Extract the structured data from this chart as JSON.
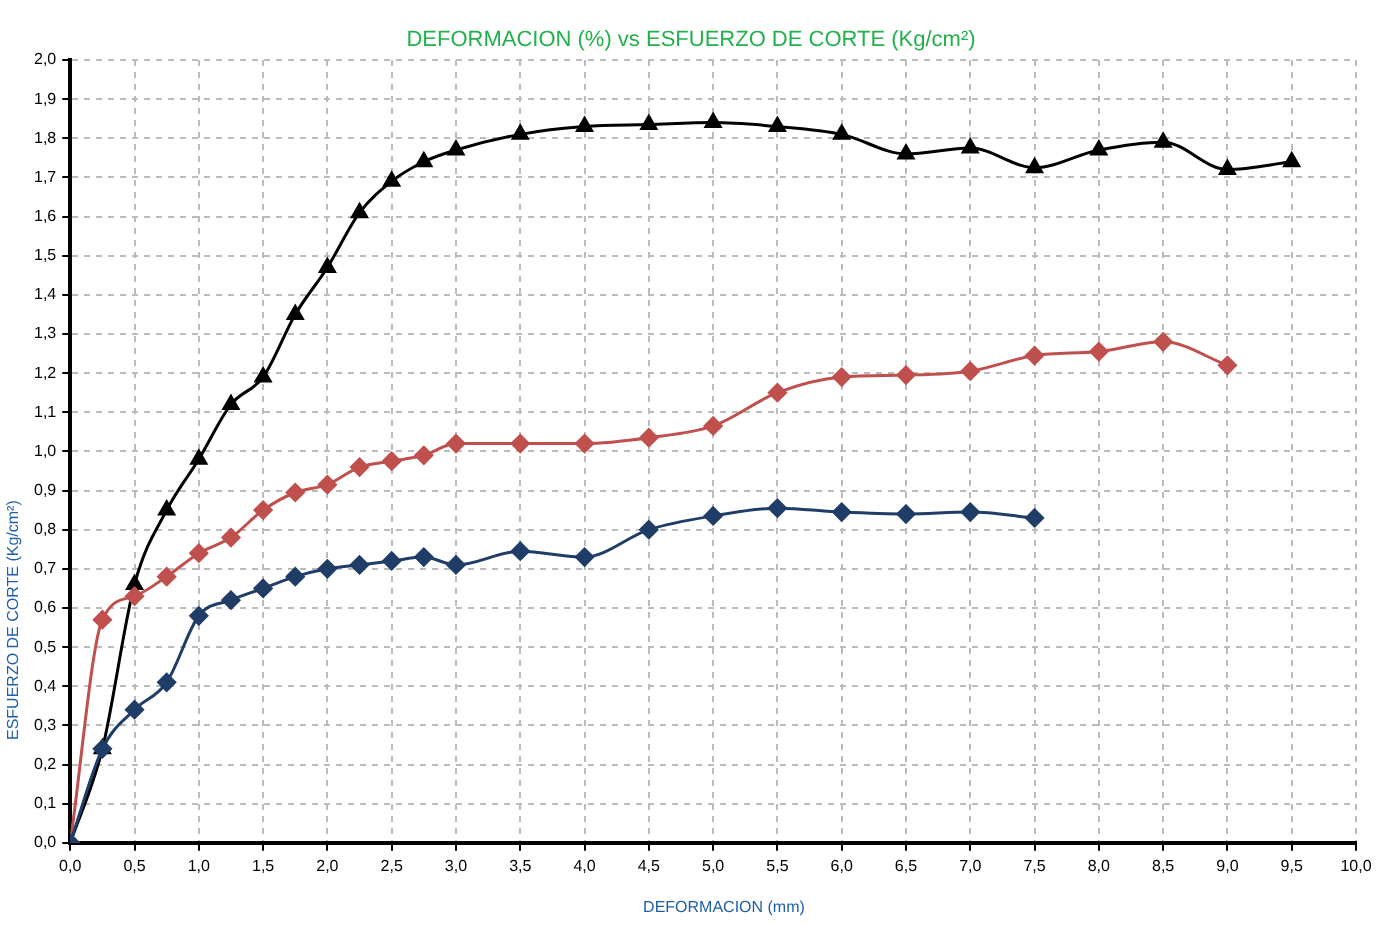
{
  "chart_data": {
    "type": "line",
    "title": "DEFORMACION (%) vs ESFUERZO DE CORTE (Kg/cm²)",
    "xlabel": "DEFORMACION (mm)",
    "ylabel": "ESFUERZO DE CORTE (Kg/cm²)",
    "xlim": [
      0,
      10
    ],
    "ylim": [
      0,
      2
    ],
    "xticks": [
      {
        "value": 0,
        "label": "0,0"
      },
      {
        "value": 0.5,
        "label": "0,5"
      },
      {
        "value": 1,
        "label": "1,0"
      },
      {
        "value": 1.5,
        "label": "1,5"
      },
      {
        "value": 2,
        "label": "2,0"
      },
      {
        "value": 2.5,
        "label": "2,5"
      },
      {
        "value": 3,
        "label": "3,0"
      },
      {
        "value": 3.5,
        "label": "3,5"
      },
      {
        "value": 4,
        "label": "4,0"
      },
      {
        "value": 4.5,
        "label": "4,5"
      },
      {
        "value": 5,
        "label": "5,0"
      },
      {
        "value": 5.5,
        "label": "5,5"
      },
      {
        "value": 6,
        "label": "6,0"
      },
      {
        "value": 6.5,
        "label": "6,5"
      },
      {
        "value": 7,
        "label": "7,0"
      },
      {
        "value": 7.5,
        "label": "7,5"
      },
      {
        "value": 8,
        "label": "8,0"
      },
      {
        "value": 8.5,
        "label": "8,5"
      },
      {
        "value": 9,
        "label": "9,0"
      },
      {
        "value": 9.5,
        "label": "9,5"
      },
      {
        "value": 10,
        "label": "10,0"
      }
    ],
    "yticks": [
      {
        "value": 0,
        "label": "0,0"
      },
      {
        "value": 0.1,
        "label": "0,1"
      },
      {
        "value": 0.2,
        "label": "0,2"
      },
      {
        "value": 0.3,
        "label": "0,3"
      },
      {
        "value": 0.4,
        "label": "0,4"
      },
      {
        "value": 0.5,
        "label": "0,5"
      },
      {
        "value": 0.6,
        "label": "0,6"
      },
      {
        "value": 0.7,
        "label": "0,7"
      },
      {
        "value": 0.8,
        "label": "0,8"
      },
      {
        "value": 0.9,
        "label": "0,9"
      },
      {
        "value": 1,
        "label": "1,0"
      },
      {
        "value": 1.1,
        "label": "1,1"
      },
      {
        "value": 1.2,
        "label": "1,2"
      },
      {
        "value": 1.3,
        "label": "1,3"
      },
      {
        "value": 1.4,
        "label": "1,4"
      },
      {
        "value": 1.5,
        "label": "1,5"
      },
      {
        "value": 1.6,
        "label": "1,6"
      },
      {
        "value": 1.7,
        "label": "1,7"
      },
      {
        "value": 1.8,
        "label": "1,8"
      },
      {
        "value": 1.9,
        "label": "1,9"
      },
      {
        "value": 2,
        "label": "2,0"
      }
    ],
    "grid": true,
    "legend": false,
    "line_style": "solid",
    "series": [
      {
        "color": "#000000",
        "marker": "triangle",
        "x": [
          0,
          0.25,
          0.5,
          0.75,
          1,
          1.25,
          1.5,
          1.75,
          2,
          2.25,
          2.5,
          2.75,
          3,
          3.5,
          4,
          4.5,
          5,
          5.5,
          6,
          6.5,
          7,
          7.5,
          8,
          8.5,
          9,
          9.5
        ],
        "values": [
          0,
          0.24,
          0.66,
          0.85,
          0.98,
          1.12,
          1.19,
          1.35,
          1.47,
          1.61,
          1.69,
          1.74,
          1.77,
          1.81,
          1.83,
          1.835,
          1.84,
          1.83,
          1.81,
          1.76,
          1.775,
          1.725,
          1.77,
          1.79,
          1.72,
          1.74
        ]
      },
      {
        "color": "#c0504d",
        "marker": "diamond",
        "x": [
          0,
          0.25,
          0.5,
          0.75,
          1,
          1.25,
          1.5,
          1.75,
          2,
          2.25,
          2.5,
          2.75,
          3,
          3.5,
          4,
          4.5,
          5,
          5.5,
          6,
          6.5,
          7,
          7.5,
          8,
          8.5,
          9
        ],
        "values": [
          0,
          0.57,
          0.63,
          0.68,
          0.74,
          0.78,
          0.85,
          0.895,
          0.915,
          0.96,
          0.975,
          0.99,
          1.02,
          1.02,
          1.02,
          1.035,
          1.065,
          1.15,
          1.19,
          1.195,
          1.205,
          1.245,
          1.255,
          1.28,
          1.22
        ]
      },
      {
        "color": "#1f3d66",
        "marker": "diamond",
        "x": [
          0,
          0.25,
          0.5,
          0.75,
          1,
          1.25,
          1.5,
          1.75,
          2,
          2.25,
          2.5,
          2.75,
          3,
          3.5,
          4,
          4.5,
          5,
          5.5,
          6,
          6.5,
          7,
          7.5
        ],
        "values": [
          0,
          0.24,
          0.34,
          0.41,
          0.58,
          0.62,
          0.65,
          0.68,
          0.7,
          0.71,
          0.72,
          0.73,
          0.71,
          0.745,
          0.73,
          0.8,
          0.835,
          0.855,
          0.845,
          0.84,
          0.845,
          0.83
        ]
      }
    ]
  }
}
